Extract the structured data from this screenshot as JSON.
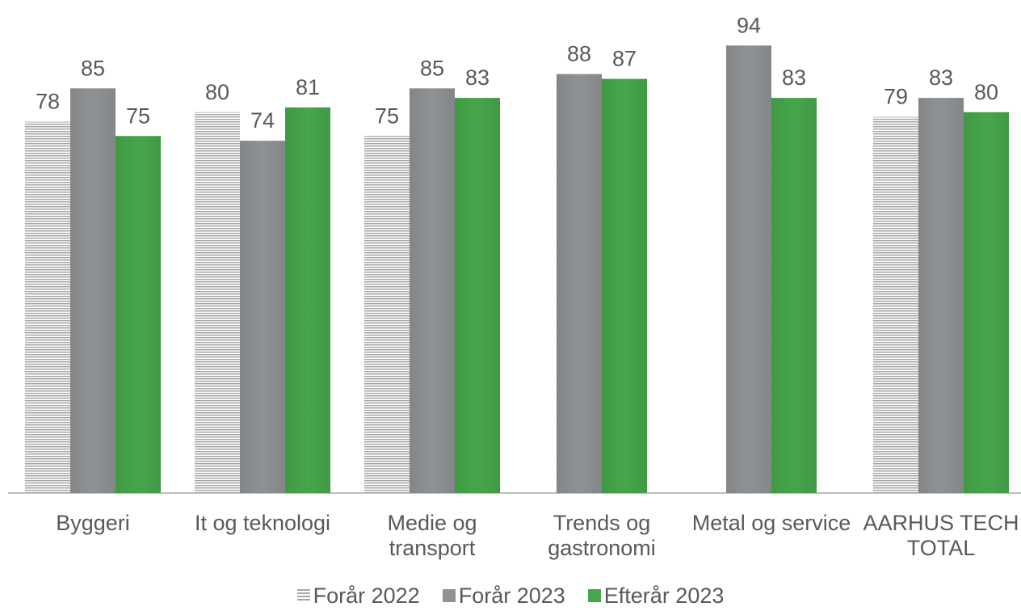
{
  "chart_data": {
    "type": "bar",
    "categories": [
      "Byggeri",
      "It og teknologi",
      "Medie og transport",
      "Trends og gastronomi",
      "Metal og service",
      "AARHUS TECH TOTAL"
    ],
    "series": [
      {
        "name": "Forår 2022",
        "color": "#a6a6a6",
        "pattern": "horizontal",
        "values": [
          78,
          80,
          75,
          null,
          null,
          79
        ]
      },
      {
        "name": "Forår 2023",
        "color": "#8f9294",
        "values": [
          85,
          74,
          85,
          88,
          94,
          83
        ]
      },
      {
        "name": "Efterår 2023",
        "color": "#46a64a",
        "values": [
          75,
          81,
          83,
          87,
          83,
          80
        ]
      }
    ],
    "ylim": [
      0,
      100
    ],
    "data_labels": true,
    "legend": "bottom"
  }
}
